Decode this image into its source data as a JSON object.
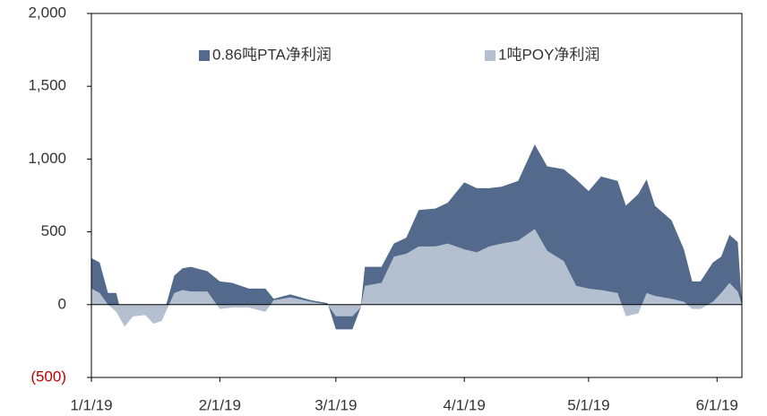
{
  "chart_data": {
    "type": "area",
    "x": [
      "1/1/19",
      "1/3/19",
      "1/5/19",
      "1/7/19",
      "1/9/19",
      "1/11/19",
      "1/14/19",
      "1/16/19",
      "1/18/19",
      "1/21/19",
      "1/23/19",
      "1/25/19",
      "1/29/19",
      "2/1/19",
      "2/4/19",
      "2/8/19",
      "2/12/19",
      "2/14/19",
      "2/18/19",
      "2/23/19",
      "2/27/19",
      "3/1/19",
      "3/5/19",
      "3/7/19",
      "3/8/19",
      "3/12/19",
      "3/15/19",
      "3/18/19",
      "3/21/19",
      "3/25/19",
      "3/28/19",
      "4/1/19",
      "4/4/19",
      "4/7/19",
      "4/10/19",
      "4/14/19",
      "4/18/19",
      "4/21/19",
      "4/25/19",
      "4/28/19",
      "5/1/19",
      "5/4/19",
      "5/8/19",
      "5/10/19",
      "5/13/19",
      "5/15/19",
      "5/17/19",
      "5/21/19",
      "5/24/19",
      "5/26/19",
      "5/28/19",
      "5/31/19",
      "6/2/19",
      "6/4/19",
      "6/6/19",
      "6/7/19"
    ],
    "series": [
      {
        "name": "0.86吨PTA净利润",
        "color": "#536a8c",
        "values": [
          320,
          290,
          80,
          80,
          -150,
          -80,
          -70,
          -130,
          -110,
          200,
          250,
          260,
          230,
          160,
          150,
          110,
          110,
          40,
          70,
          30,
          10,
          -170,
          -170,
          -20,
          260,
          260,
          420,
          460,
          650,
          660,
          700,
          840,
          800,
          800,
          810,
          850,
          1100,
          950,
          930,
          860,
          780,
          880,
          850,
          680,
          760,
          860,
          680,
          580,
          380,
          160,
          160,
          290,
          330,
          480,
          430,
          0
        ]
      },
      {
        "name": "1吨POY净利润",
        "color": "#b4bfcf",
        "values": [
          110,
          80,
          0,
          -50,
          -150,
          -80,
          -70,
          -130,
          -110,
          80,
          100,
          90,
          90,
          -30,
          -20,
          -20,
          -50,
          30,
          50,
          20,
          0,
          -80,
          -80,
          -20,
          130,
          150,
          330,
          350,
          400,
          400,
          420,
          380,
          360,
          400,
          420,
          440,
          520,
          370,
          300,
          130,
          110,
          100,
          80,
          -80,
          -60,
          80,
          60,
          40,
          20,
          -30,
          -30,
          20,
          80,
          150,
          90,
          0
        ]
      }
    ],
    "xlim": [
      "1/1/19",
      "6/7/19"
    ],
    "xticks": [
      "1/1/19",
      "2/1/19",
      "3/1/19",
      "4/1/19",
      "5/1/19",
      "6/1/19"
    ],
    "ylim": [
      -500,
      2000
    ],
    "yticks": [
      {
        "value": -500,
        "label": "(500)"
      },
      0,
      500,
      {
        "value": 1000,
        "label": "1,000"
      },
      {
        "value": 1500,
        "label": "1,500"
      },
      {
        "value": 2000,
        "label": "2,000"
      }
    ],
    "negative_label_color": "#c00000",
    "legend": "top"
  }
}
